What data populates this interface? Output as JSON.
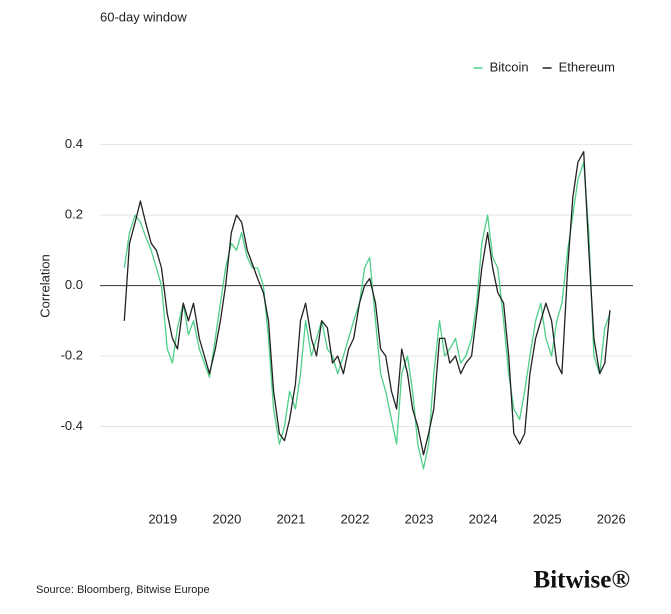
{
  "chart_data": {
    "type": "line",
    "title": "60-day window",
    "y_label": "Correlation",
    "x": [
      2018.4,
      2018.48,
      2018.57,
      2018.65,
      2018.73,
      2018.82,
      2018.9,
      2018.98,
      2019.07,
      2019.15,
      2019.23,
      2019.32,
      2019.4,
      2019.48,
      2019.57,
      2019.65,
      2019.73,
      2019.82,
      2019.9,
      2019.98,
      2020.07,
      2020.15,
      2020.23,
      2020.32,
      2020.4,
      2020.48,
      2020.57,
      2020.65,
      2020.73,
      2020.82,
      2020.9,
      2020.98,
      2021.07,
      2021.15,
      2021.23,
      2021.32,
      2021.4,
      2021.48,
      2021.57,
      2021.65,
      2021.73,
      2021.82,
      2021.9,
      2021.98,
      2022.07,
      2022.15,
      2022.23,
      2022.32,
      2022.4,
      2022.48,
      2022.57,
      2022.65,
      2022.73,
      2022.82,
      2022.9,
      2022.98,
      2023.07,
      2023.15,
      2023.23,
      2023.32,
      2023.4,
      2023.48,
      2023.57,
      2023.65,
      2023.73,
      2023.82,
      2023.9,
      2023.98,
      2024.07,
      2024.15,
      2024.23,
      2024.32,
      2024.4,
      2024.48,
      2024.57,
      2024.65,
      2024.73,
      2024.82,
      2024.9,
      2024.98,
      2025.07,
      2025.15,
      2025.23,
      2025.32,
      2025.4,
      2025.48,
      2025.57,
      2025.65,
      2025.73,
      2025.82,
      2025.9,
      2025.98
    ],
    "series": [
      {
        "name": "Bitcoin",
        "color": "#4fcf8a",
        "values": [
          0.05,
          0.15,
          0.2,
          0.18,
          0.14,
          0.1,
          0.05,
          0.0,
          -0.18,
          -0.22,
          -0.12,
          -0.05,
          -0.14,
          -0.1,
          -0.18,
          -0.22,
          -0.26,
          -0.15,
          -0.05,
          0.05,
          0.12,
          0.1,
          0.15,
          0.08,
          0.05,
          0.05,
          0.0,
          -0.15,
          -0.35,
          -0.45,
          -0.4,
          -0.3,
          -0.35,
          -0.25,
          -0.1,
          -0.2,
          -0.15,
          -0.1,
          -0.18,
          -0.2,
          -0.25,
          -0.2,
          -0.15,
          -0.1,
          -0.05,
          0.05,
          0.08,
          -0.1,
          -0.25,
          -0.3,
          -0.38,
          -0.45,
          -0.25,
          -0.2,
          -0.3,
          -0.45,
          -0.52,
          -0.45,
          -0.25,
          -0.1,
          -0.2,
          -0.18,
          -0.15,
          -0.22,
          -0.2,
          -0.15,
          -0.05,
          0.12,
          0.2,
          0.08,
          0.05,
          -0.1,
          -0.25,
          -0.35,
          -0.38,
          -0.3,
          -0.2,
          -0.1,
          -0.05,
          -0.15,
          -0.2,
          -0.1,
          -0.05,
          0.1,
          0.2,
          0.3,
          0.35,
          0.15,
          -0.2,
          -0.25,
          -0.12,
          -0.08
        ]
      },
      {
        "name": "Ethereum",
        "color": "#222222",
        "values": [
          -0.1,
          0.12,
          0.18,
          0.24,
          0.18,
          0.12,
          0.1,
          0.05,
          -0.08,
          -0.15,
          -0.18,
          -0.05,
          -0.1,
          -0.05,
          -0.15,
          -0.2,
          -0.25,
          -0.18,
          -0.1,
          0.0,
          0.15,
          0.2,
          0.18,
          0.1,
          0.06,
          0.02,
          -0.02,
          -0.1,
          -0.3,
          -0.42,
          -0.44,
          -0.38,
          -0.28,
          -0.1,
          -0.05,
          -0.15,
          -0.2,
          -0.1,
          -0.12,
          -0.22,
          -0.2,
          -0.25,
          -0.18,
          -0.15,
          -0.05,
          0.0,
          0.02,
          -0.05,
          -0.18,
          -0.2,
          -0.3,
          -0.35,
          -0.18,
          -0.25,
          -0.35,
          -0.4,
          -0.48,
          -0.42,
          -0.35,
          -0.15,
          -0.15,
          -0.22,
          -0.2,
          -0.25,
          -0.22,
          -0.2,
          -0.08,
          0.05,
          0.15,
          0.05,
          -0.02,
          -0.05,
          -0.2,
          -0.42,
          -0.45,
          -0.42,
          -0.25,
          -0.15,
          -0.1,
          -0.05,
          -0.1,
          -0.22,
          -0.25,
          0.05,
          0.25,
          0.35,
          0.38,
          0.1,
          -0.15,
          -0.25,
          -0.22,
          -0.07
        ]
      }
    ],
    "xlim": [
      2018.02,
      2026.34
    ],
    "xticks": [
      2019,
      2020,
      2021,
      2022,
      2023,
      2024,
      2025,
      2026
    ],
    "ylim": [
      -0.6,
      0.45
    ],
    "yticks": [
      0.4,
      0.2,
      {
        "value": 0,
        "label": "0.0"
      },
      -0.2,
      -0.4
    ],
    "grid": true,
    "zero_line": true,
    "legend": "top-right"
  },
  "footer": {
    "source": "Source: Bloomberg, Bitwise Europe",
    "logo": "Bitwise®"
  }
}
